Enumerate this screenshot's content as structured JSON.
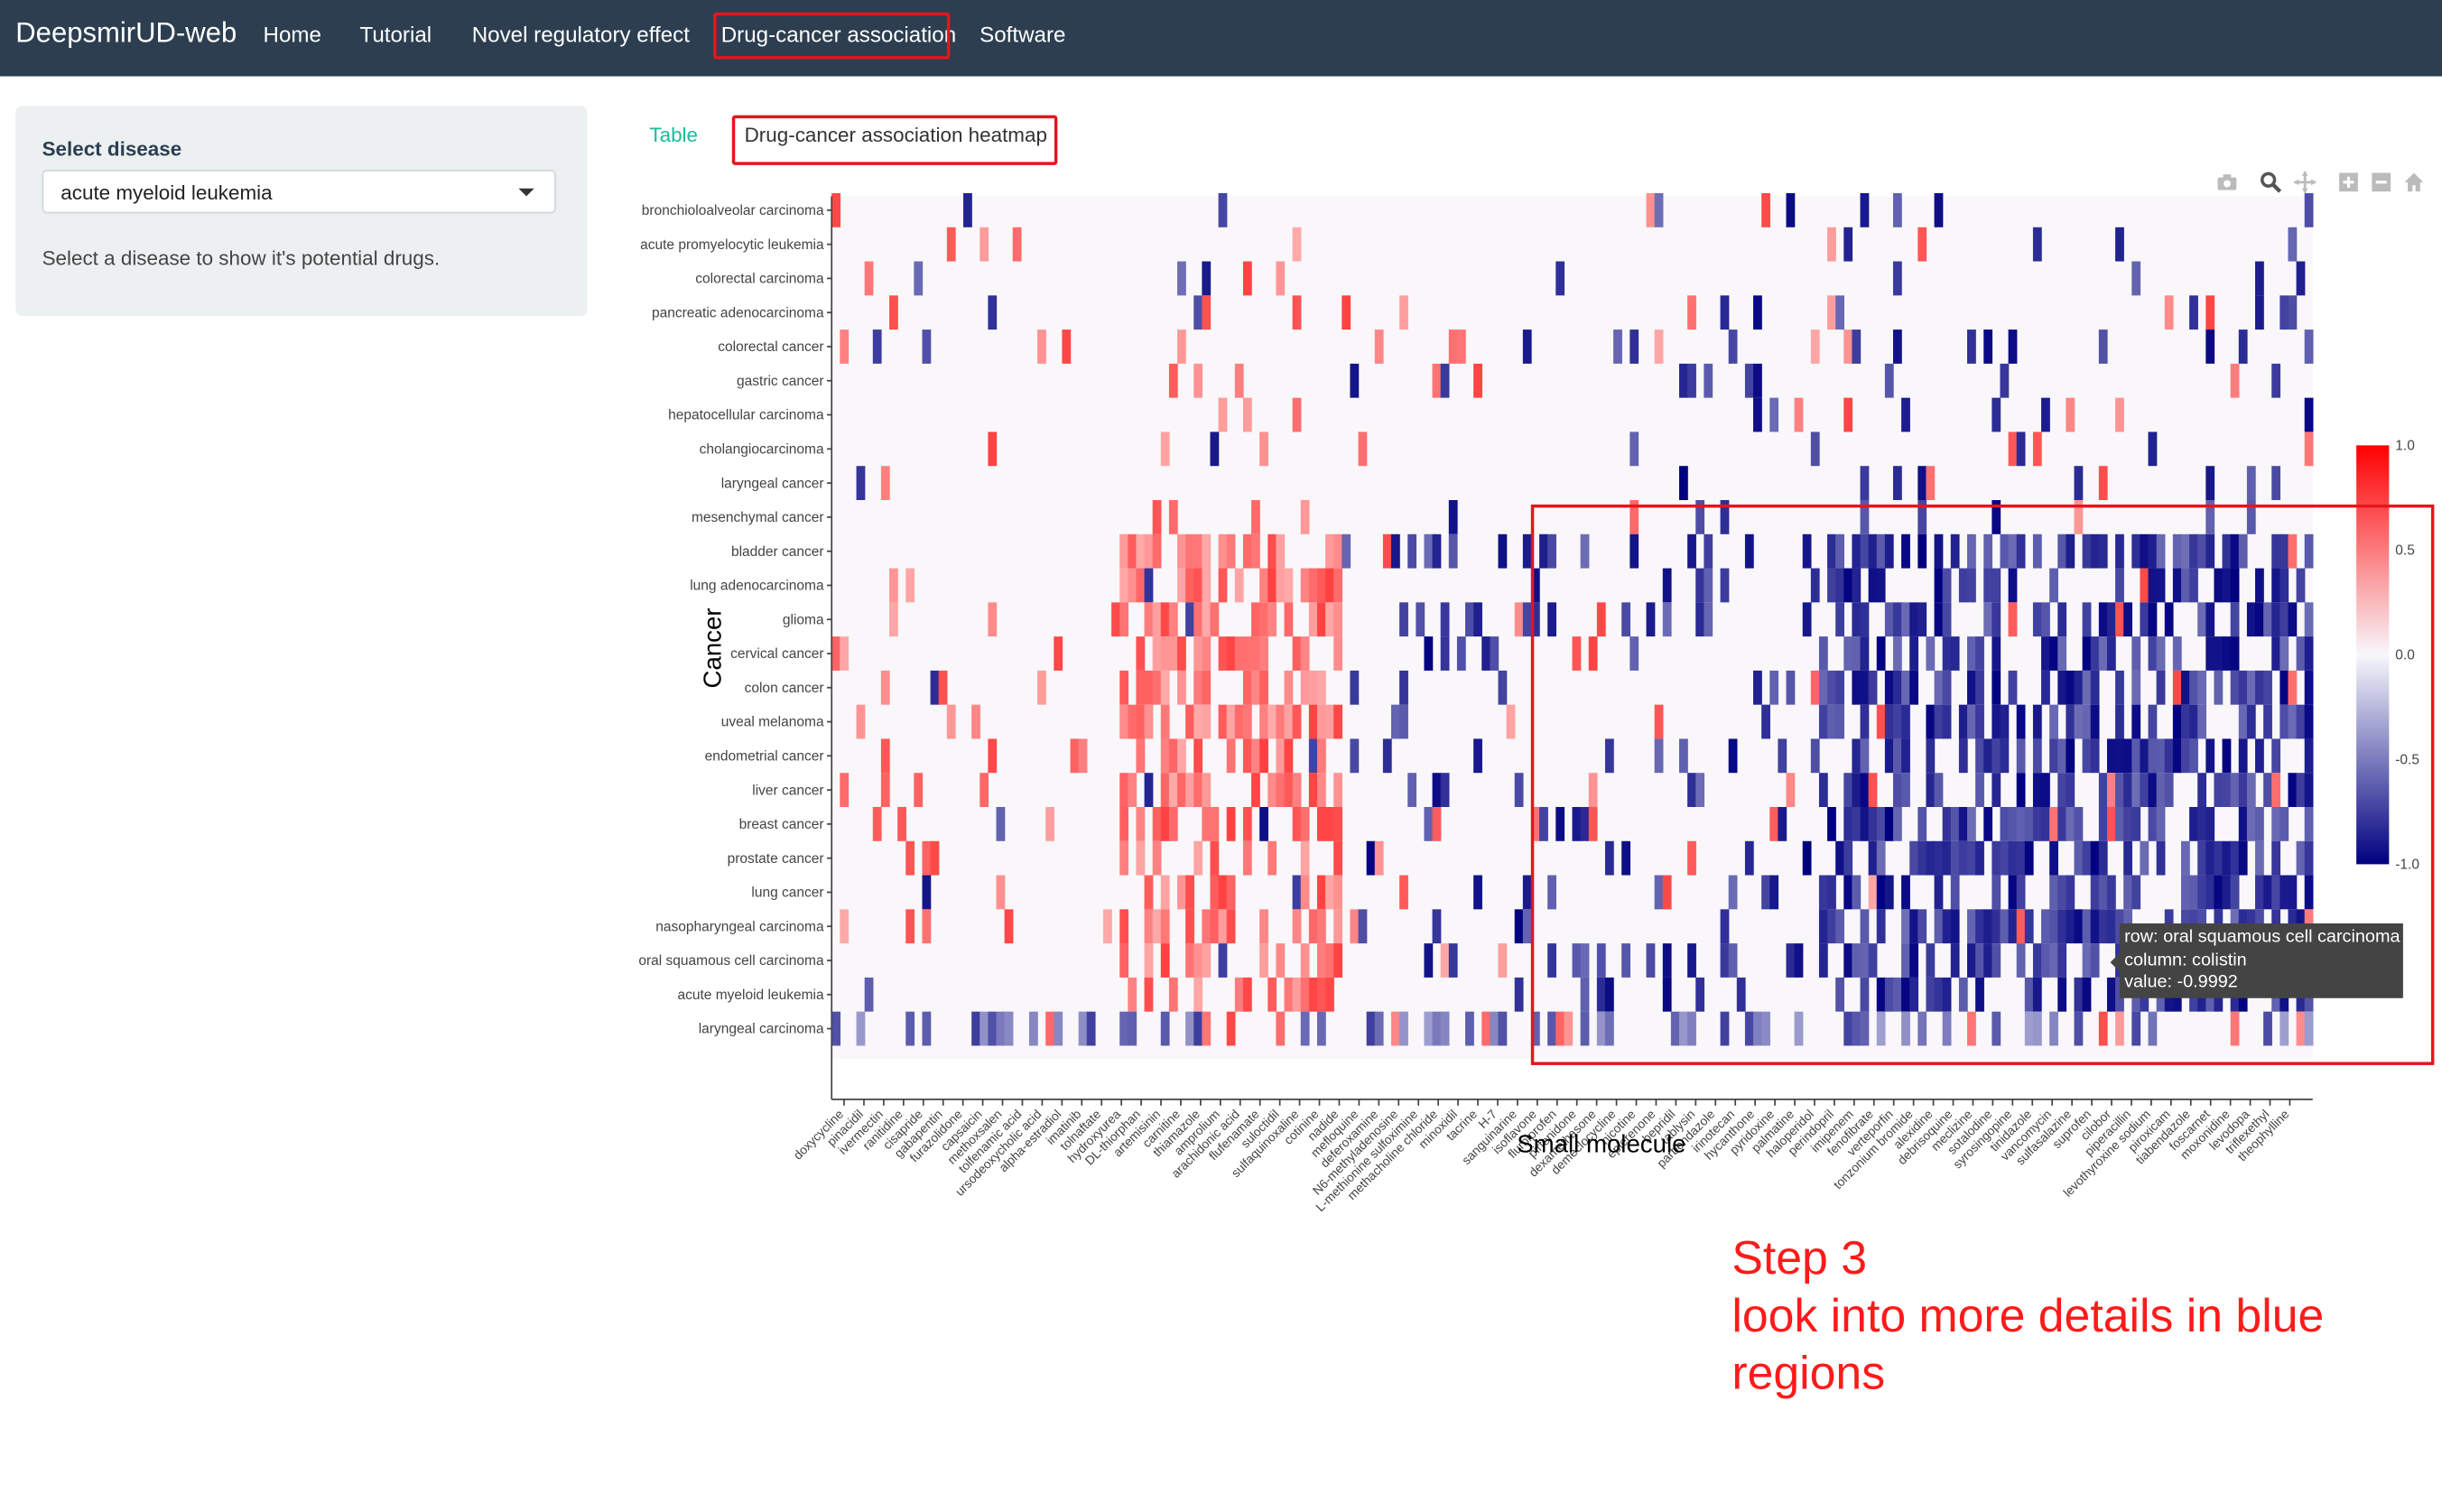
{
  "navbar": {
    "brand": "DeepsmirUD-web",
    "links": [
      "Home",
      "Tutorial",
      "Novel regulatory effect",
      "Drug-cancer association",
      "Software"
    ],
    "active": "Drug-cancer association",
    "bg_color": "#2c3e50"
  },
  "sidebar": {
    "label": "Select disease",
    "selected": "acute myeloid leukemia",
    "help": "Select a disease to show it's potential drugs."
  },
  "tabs": [
    "Table",
    "Drug-cancer association heatmap"
  ],
  "active_tab": "Drug-cancer association heatmap",
  "modebar_icons": [
    "camera-icon",
    "zoom-icon",
    "pan-icon",
    "zoom-in-icon",
    "zoom-out-icon",
    "home-icon"
  ],
  "tooltip": {
    "row": "row: oral squamous cell carcinoma",
    "column": "column: colistin",
    "value": "value: -0.9992"
  },
  "annotation": [
    "Step 3",
    "look into more details in blue",
    "regions"
  ],
  "colors": {
    "positive": "#ff0000",
    "negative": "#000080",
    "neutral": "#f7f7fa",
    "highlight": "#e5151d"
  },
  "chart_data": {
    "type": "heatmap",
    "xlabel": "Small molecule",
    "ylabel": "Cancer",
    "colorbar": {
      "range": [
        -1.0,
        1.0
      ],
      "ticks": [
        "1.0",
        "0.5",
        "0.0",
        "-0.5",
        "-1.0"
      ]
    },
    "rows": [
      "bronchioloalveolar carcinoma",
      "acute promyelocytic leukemia",
      "colorectal carcinoma",
      "pancreatic adenocarcinoma",
      "colorectal cancer",
      "gastric cancer",
      "hepatocellular carcinoma",
      "cholangiocarcinoma",
      "laryngeal cancer",
      "mesenchymal cancer",
      "bladder cancer",
      "lung adenocarcinoma",
      "glioma",
      "cervical cancer",
      "colon cancer",
      "uveal melanoma",
      "endometrial cancer",
      "liver cancer",
      "breast cancer",
      "prostate cancer",
      "lung cancer",
      "nasopharyngeal carcinoma",
      "oral squamous cell carcinoma",
      "acute myeloid leukemia",
      "laryngeal carcinoma"
    ],
    "columns": [
      "doxycycline",
      "pinacidil",
      "ivermectin",
      "ranitidine",
      "cisapride",
      "gabapentin",
      "furazolidone",
      "capsaicin",
      "methoxsalen",
      "tolfenamic acid",
      "ursodeoxycholic acid",
      "alpha-estradiol",
      "imatinib",
      "tolnaftate",
      "hydroxyurea",
      "DL-thiorphan",
      "artemisinin",
      "carnitine",
      "thiamazole",
      "amprolium",
      "arachidonic acid",
      "flufenamate",
      "suloctidil",
      "sulfaquinoxaline",
      "cotinine",
      "nadide",
      "mefloquine",
      "deferoxamine",
      "N6-methyladenosine",
      "L-methionine sulfoximine",
      "methacholine chloride",
      "minoxidil",
      "tacrine",
      "H-7",
      "sanguinarine",
      "isoflavone",
      "flurbiprofen",
      "pirfenidone",
      "dexamethasone",
      "demeclocycline",
      "nicotine",
      "eplerenone",
      "bepridil",
      "tablysin",
      "parbendazole",
      "irinotecan",
      "hycanthone",
      "pyridoxine",
      "palmatine",
      "haloperidol",
      "perindopril",
      "imipenem",
      "fenofibrate",
      "verteporfin",
      "tonzonium bromide",
      "alexidine",
      "debrisoquine",
      "meclizine",
      "sotalodine",
      "syrosingopine",
      "tinidazole",
      "vancomycin",
      "sulfasalazine",
      "suprofen",
      "cilobor",
      "piperacillin",
      "levothyroxine sodium",
      "piroxicam",
      "tiabendazole",
      "foscarnet",
      "moxonidine",
      "levodopa",
      "triflexethyl",
      "theophylline"
    ],
    "blue_region_note": "negative associations cluster in right-side columns for rows bladder cancer through laryngeal carcinoma"
  }
}
